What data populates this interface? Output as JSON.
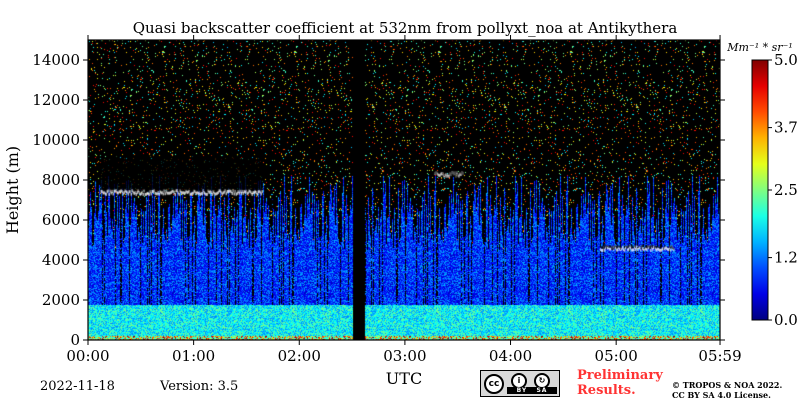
{
  "chart_data": {
    "type": "heatmap",
    "title": "Quasi backscatter coefficient at 532nm from pollyxt_noa at Antikythera",
    "xlabel": "UTC",
    "ylabel": "Height (m)",
    "x_ticks": [
      "00:00",
      "01:00",
      "02:00",
      "03:00",
      "04:00",
      "05:00",
      "05:59"
    ],
    "y_ticks": [
      "0",
      "2000",
      "4000",
      "6000",
      "8000",
      "10000",
      "12000",
      "14000"
    ],
    "xlim_hours": [
      0,
      5.983
    ],
    "ylim": [
      0,
      15000
    ],
    "colorbar": {
      "unit_label": "Mm⁻¹ * sr⁻¹",
      "ticks": [
        "0.0",
        "1.2",
        "2.5",
        "3.7",
        "5.0"
      ],
      "range": [
        0,
        5.0
      ],
      "colormap": "jet"
    },
    "features": {
      "no_data_gaps_hours": [
        [
          2.5,
          2.62
        ]
      ],
      "cloud_layers": [
        {
          "start_h": 0.12,
          "end_h": 1.65,
          "height_m": [
            7200,
            9300
          ],
          "value": 5.0
        },
        {
          "start_h": 3.28,
          "end_h": 3.55,
          "height_m": [
            8100,
            8400
          ],
          "value": 5.0
        },
        {
          "start_h": 4.85,
          "end_h": 5.55,
          "height_m": [
            4400,
            4800
          ],
          "value": 5.0
        }
      ],
      "boundary_layer_top_m": 1800,
      "aerosol_top_m": 7500
    }
  },
  "footer": {
    "date": "2022-11-18",
    "version": "Version: 3.5",
    "preliminary_line1": "Preliminary",
    "preliminary_line2": "Results.",
    "copyright_line1": "© TROPOS & NOA 2022.",
    "copyright_line2": "CC BY SA 4.0 License.",
    "license_badge": {
      "cc": "cc",
      "by": "BY",
      "sa": "SA"
    }
  }
}
